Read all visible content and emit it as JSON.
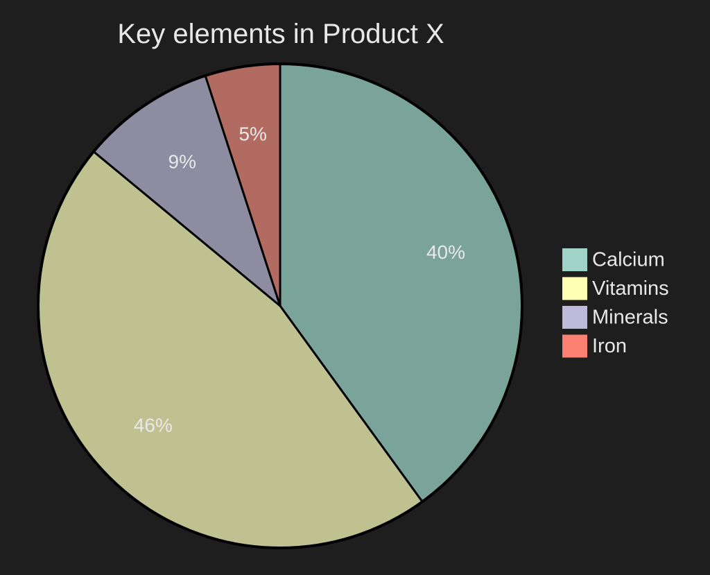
{
  "chart_data": {
    "type": "pie",
    "title": "Key elements in Product X",
    "slices": [
      {
        "label": "Calcium",
        "value": 40,
        "display": "40%",
        "color": "#7aa39a",
        "legend_color": "#9fd3c7"
      },
      {
        "label": "Vitamins",
        "value": 46,
        "display": "46%",
        "color": "#bfc190",
        "legend_color": "#ffffb3"
      },
      {
        "label": "Minerals",
        "value": 9,
        "display": "9%",
        "color": "#8e8ca0",
        "legend_color": "#bebada"
      },
      {
        "label": "Iron",
        "value": 5,
        "display": "5%",
        "color": "#b26b61",
        "legend_color": "#fb8072"
      }
    ],
    "legend_placement": "right",
    "start_angle_deg": 90,
    "direction": "clockwise",
    "background": "#1e1e1e",
    "text_color": "#e8e8e8"
  }
}
